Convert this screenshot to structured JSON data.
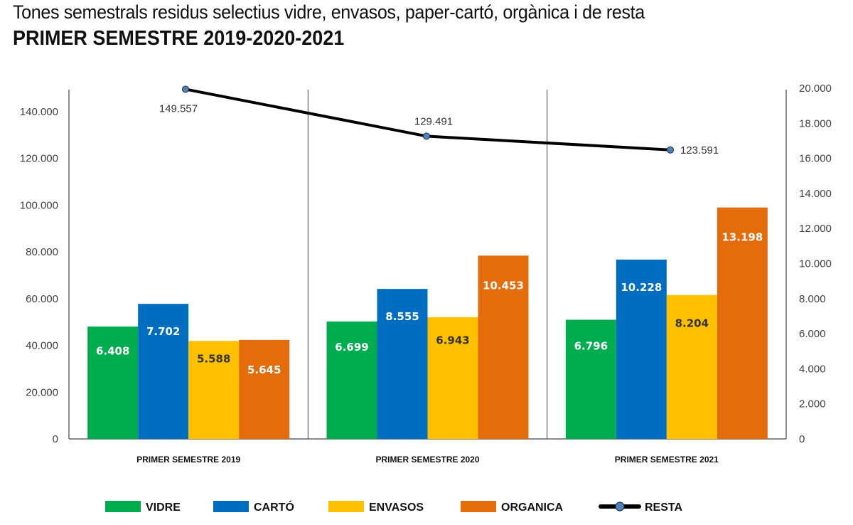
{
  "header": {
    "title": "Tones semestrals residus selectius vidre, envasos, paper-cartó, orgànica i de resta",
    "subtitle": "PRIMER SEMESTRE 2019-2020-2021"
  },
  "chart_data": {
    "type": "bar",
    "title": "Tones semestrals residus selectius vidre, envasos, paper-cartó, orgànica i de resta",
    "subtitle": "PRIMER SEMESTRE 2019-2020-2021",
    "categories": [
      "PRIMER SEMESTRE 2019",
      "PRIMER SEMESTRE 2020",
      "PRIMER SEMESTRE 2021"
    ],
    "series": [
      {
        "name": "VIDRE",
        "type": "bar",
        "axis": "right",
        "color": "#00AD4E",
        "label_color": "#ffffff",
        "values": [
          6408,
          6699,
          6796
        ],
        "labels": [
          "6.408",
          "6.699",
          "6.796"
        ]
      },
      {
        "name": "CARTÓ",
        "type": "bar",
        "axis": "right",
        "color": "#006EC0",
        "label_color": "#ffffff",
        "values": [
          7702,
          8555,
          10228
        ],
        "labels": [
          "7.702",
          "8.555",
          "10.228"
        ]
      },
      {
        "name": "ENVASOS",
        "type": "bar",
        "axis": "right",
        "color": "#FFC000",
        "label_color": "#333333",
        "values": [
          5588,
          6943,
          8204
        ],
        "labels": [
          "5.588",
          "6.943",
          "8.204"
        ]
      },
      {
        "name": "ORGANICA",
        "type": "bar",
        "axis": "right",
        "color": "#E46C0A",
        "label_color": "#ffffff",
        "values": [
          5645,
          10453,
          13198
        ],
        "labels": [
          "5.645",
          "10.453",
          "13.198"
        ]
      },
      {
        "name": "RESTA",
        "type": "line",
        "axis": "left",
        "color": "#000000",
        "marker_color": "#4F81BD",
        "values": [
          149557,
          129491,
          123591
        ],
        "labels": [
          "149.557",
          "129.491",
          "123.591"
        ]
      }
    ],
    "left_axis": {
      "ylim": [
        0,
        150000
      ],
      "ticks": [
        0,
        20000,
        40000,
        60000,
        80000,
        100000,
        120000,
        140000
      ],
      "tick_labels": [
        "0",
        "20.000",
        "40.000",
        "60.000",
        "80.000",
        "100.000",
        "120.000",
        "140.000"
      ]
    },
    "right_axis": {
      "ylim": [
        0,
        20000
      ],
      "ticks": [
        0,
        2000,
        4000,
        6000,
        8000,
        10000,
        12000,
        14000,
        16000,
        18000,
        20000
      ],
      "tick_labels": [
        "0",
        "2.000",
        "4.000",
        "6.000",
        "8.000",
        "10.000",
        "12.000",
        "14.000",
        "16.000",
        "18.000",
        "20.000"
      ]
    },
    "xlabel": "",
    "ylabel": "",
    "grid": false,
    "legend": {
      "position": "bottom",
      "entries": [
        "VIDRE",
        "CARTÓ",
        "ENVASOS",
        "ORGANICA",
        "RESTA"
      ]
    }
  }
}
